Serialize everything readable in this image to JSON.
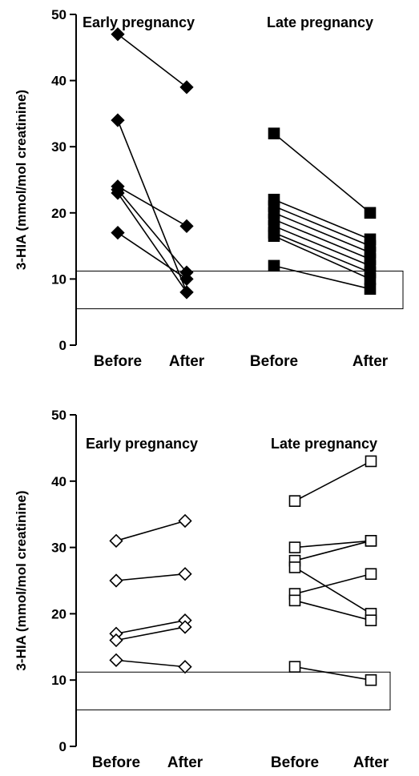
{
  "chart_data": [
    {
      "type": "scatter",
      "ylabel": "3-HIA (mmol/mol creatinine)",
      "ylim": [
        0,
        50
      ],
      "yticks": [
        0,
        10,
        20,
        30,
        40,
        50
      ],
      "categories": [
        "Before",
        "After",
        "Before",
        "After"
      ],
      "groups": [
        "Early pregnancy",
        "Late pregnancy"
      ],
      "reference_range": [
        5.5,
        11.2
      ],
      "marker_fill": "#000000",
      "series": [
        {
          "group": "Early pregnancy",
          "marker": "diamond",
          "pairs": [
            [
              47,
              39
            ],
            [
              34,
              8
            ],
            [
              24,
              18
            ],
            [
              23.5,
              11
            ],
            [
              23,
              8
            ],
            [
              17,
              10
            ]
          ]
        },
        {
          "group": "Late pregnancy",
          "marker": "square",
          "pairs": [
            [
              32,
              20
            ],
            [
              22,
              16
            ],
            [
              21,
              15
            ],
            [
              20,
              14
            ],
            [
              19,
              13
            ],
            [
              18,
              12
            ],
            [
              17,
              11
            ],
            [
              16.5,
              10
            ],
            [
              12,
              8.5
            ]
          ]
        }
      ]
    },
    {
      "type": "scatter",
      "ylabel": "3-HIA (mmol/mol creatinine)",
      "ylim": [
        0,
        50
      ],
      "yticks": [
        0,
        10,
        20,
        30,
        40,
        50
      ],
      "categories": [
        "Before",
        "After",
        "Before",
        "After"
      ],
      "groups": [
        "Early pregnancy",
        "Late pregnancy"
      ],
      "reference_range": [
        5.5,
        11.2
      ],
      "marker_fill": "#ffffff",
      "series": [
        {
          "group": "Early pregnancy",
          "marker": "diamond",
          "pairs": [
            [
              31,
              34
            ],
            [
              25,
              26
            ],
            [
              17,
              19
            ],
            [
              16,
              18
            ],
            [
              13,
              12
            ]
          ]
        },
        {
          "group": "Late pregnancy",
          "marker": "square",
          "pairs": [
            [
              37,
              43
            ],
            [
              30,
              31
            ],
            [
              28,
              31
            ],
            [
              27,
              20
            ],
            [
              23,
              26
            ],
            [
              22,
              19
            ],
            [
              12,
              10
            ]
          ]
        }
      ]
    }
  ]
}
